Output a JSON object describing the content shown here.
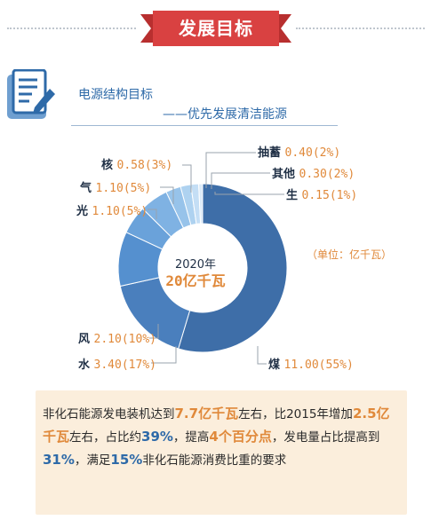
{
  "banner": {
    "title": "发展目标"
  },
  "heading": {
    "title": "电源结构目标",
    "subtitle": "——优先发展清洁能源"
  },
  "center": {
    "year": "2020年",
    "total": "20亿千瓦"
  },
  "unit": "（单位：亿千瓦）",
  "chart_data": {
    "type": "pie",
    "style": "donut",
    "unit": "亿千瓦",
    "categories": [
      "煤",
      "水",
      "风",
      "光",
      "气",
      "核",
      "抽蓄",
      "其他",
      "生"
    ],
    "values": [
      11.0,
      3.4,
      2.1,
      1.1,
      1.1,
      0.58,
      0.4,
      0.3,
      0.15
    ],
    "value_labels": [
      "11.00(55%)",
      "3.40(17%)",
      "2.10(10%)",
      "1.10(5%)",
      "1.10(5%)",
      "0.58(3%)",
      "0.40(2%)",
      "0.30(2%)",
      "0.15(1%)"
    ],
    "percents": [
      55,
      17,
      10,
      5,
      5,
      3,
      2,
      2,
      1
    ],
    "colors": [
      "#3e6ea8",
      "#4a7fbd",
      "#5590cf",
      "#6aa2da",
      "#7fb2e3",
      "#97c3ea",
      "#aed2f0",
      "#c4def5",
      "#dbeaf8"
    ]
  },
  "note": {
    "p1": "非化石能源发电装机达到",
    "h1": "7.7亿千瓦",
    "p2": "左右，比2015年增加",
    "h2": "2.5亿千瓦",
    "p3": "左右，占比约",
    "h3": "39%",
    "p4": "，提高",
    "h4": "4个百分点",
    "p5": "，发电量占比提高到",
    "h5": "31%",
    "p6": "，满足",
    "h6": "15%",
    "p7": "非化石能源消费比重的要求"
  },
  "colors": {
    "accent": "#e0893a",
    "banner": "#d94141",
    "primary": "#2e6aa8",
    "note_bg": "#fbeedc"
  }
}
